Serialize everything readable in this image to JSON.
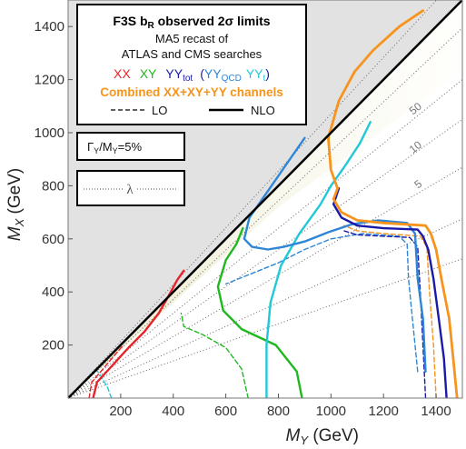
{
  "chart_data": {
    "type": "line",
    "title": "F3S b_R observed 2σ limits",
    "title_main": "F3S b",
    "title_sub": "R",
    "title_rest": " observed 2σ limits",
    "subtitle_line1": "MA5 recast of",
    "subtitle_line2": "ATLAS and CMS searches",
    "xlabel_main": "M",
    "xlabel_sub": "Y",
    "xlabel_unit": " (GeV)",
    "ylabel_main": "M",
    "ylabel_sub": "X",
    "ylabel_unit": " (GeV)",
    "xlim": [
      0,
      1500
    ],
    "ylim": [
      0,
      1500
    ],
    "xticks": [
      200,
      400,
      600,
      800,
      1000,
      1200,
      1400
    ],
    "yticks": [
      200,
      400,
      600,
      800,
      1000,
      1200,
      1400
    ],
    "excluded_region": "M_X < M_Y (grey)",
    "legend": {
      "XX": "XX",
      "XY": "XY",
      "YYtot_main": "YY",
      "YYtot_sub": "tot",
      "paren_open": "(",
      "YYQCD_main": "YY",
      "YYQCD_sub": "QCD",
      "YYt_main": "YY",
      "YYt_sub": "t",
      "paren_close": ")",
      "combined": "Combined XX+XY+YY channels",
      "lo": "LO",
      "nlo": "NLO",
      "width_main": "Γ",
      "width_sub1": "Y",
      "width_mid": "/M",
      "width_sub2": "Y",
      "width_end": "=5%",
      "lambda": "λ"
    },
    "lambda_contours": [
      {
        "label": "50",
        "slope": 1.07
      },
      {
        "label": "10",
        "slope": 0.93
      },
      {
        "label": "5",
        "slope": 0.8
      }
    ],
    "extra_dotted_slopes": [
      0.7,
      0.58,
      0.45,
      0.35
    ],
    "colors": {
      "XX": "#e8232a",
      "XY": "#1fb81f",
      "YYtot": "#1a1aa8",
      "YYQCD": "#2f86d6",
      "YYt": "#22c8d8",
      "combined": "#f7941d",
      "excluded": "#e2e2e2",
      "diagonal_band": "#d9d7a8"
    },
    "series": [
      {
        "name": "XX",
        "order": "NLO",
        "color_key": "XX",
        "points": [
          [
            95,
            0
          ],
          [
            110,
            60
          ],
          [
            175,
            130
          ],
          [
            230,
            190
          ],
          [
            290,
            250
          ],
          [
            345,
            320
          ],
          [
            385,
            390
          ],
          [
            415,
            445
          ],
          [
            440,
            480
          ]
        ]
      },
      {
        "name": "XY",
        "order": "NLO",
        "color_key": "XY",
        "points": [
          [
            890,
            0
          ],
          [
            870,
            100
          ],
          [
            790,
            200
          ],
          [
            660,
            260
          ],
          [
            590,
            330
          ],
          [
            570,
            420
          ],
          [
            600,
            520
          ],
          [
            640,
            580
          ],
          [
            665,
            640
          ]
        ]
      },
      {
        "name": "YY_t",
        "order": "NLO",
        "color_key": "YYt",
        "points": [
          [
            755,
            0
          ],
          [
            755,
            200
          ],
          [
            770,
            360
          ],
          [
            810,
            500
          ],
          [
            880,
            620
          ],
          [
            960,
            730
          ],
          [
            1000,
            800
          ],
          [
            1050,
            870
          ],
          [
            1110,
            960
          ],
          [
            1150,
            1040
          ]
        ]
      },
      {
        "name": "YY_QCD",
        "order": "NLO",
        "color_key": "YYQCD",
        "points": [
          [
            1360,
            100
          ],
          [
            1350,
            300
          ],
          [
            1330,
            450
          ],
          [
            1320,
            620
          ],
          [
            1290,
            660
          ],
          [
            1180,
            670
          ],
          [
            1080,
            655
          ],
          [
            990,
            625
          ],
          [
            900,
            590
          ],
          [
            820,
            570
          ],
          [
            760,
            560
          ],
          [
            700,
            570
          ],
          [
            670,
            600
          ],
          [
            690,
            680
          ],
          [
            760,
            780
          ],
          [
            830,
            880
          ],
          [
            900,
            980
          ]
        ]
      },
      {
        "name": "YY_tot",
        "order": "NLO",
        "color_key": "YYtot",
        "points": [
          [
            1440,
            0
          ],
          [
            1430,
            150
          ],
          [
            1410,
            300
          ],
          [
            1390,
            450
          ],
          [
            1370,
            560
          ],
          [
            1350,
            610
          ],
          [
            1330,
            635
          ],
          [
            1200,
            640
          ],
          [
            1100,
            650
          ],
          [
            1040,
            680
          ],
          [
            1010,
            730
          ],
          [
            1030,
            790
          ]
        ]
      },
      {
        "name": "Combined",
        "order": "NLO",
        "color_key": "combined",
        "points": [
          [
            1480,
            0
          ],
          [
            1465,
            150
          ],
          [
            1450,
            300
          ],
          [
            1420,
            450
          ],
          [
            1400,
            560
          ],
          [
            1380,
            620
          ],
          [
            1360,
            650
          ],
          [
            1200,
            660
          ],
          [
            1100,
            670
          ],
          [
            1040,
            700
          ],
          [
            1010,
            750
          ],
          [
            1025,
            790
          ],
          [
            1000,
            860
          ],
          [
            990,
            980
          ],
          [
            1030,
            1120
          ],
          [
            1090,
            1230
          ],
          [
            1160,
            1310
          ],
          [
            1260,
            1400
          ],
          [
            1350,
            1460
          ]
        ]
      },
      {
        "name": "XX",
        "order": "LO",
        "color_key": "XX",
        "points": [
          [
            80,
            0
          ],
          [
            90,
            60
          ],
          [
            150,
            130
          ],
          [
            210,
            200
          ]
        ]
      },
      {
        "name": "XY",
        "order": "LO",
        "color_key": "XY",
        "points": [
          [
            685,
            0
          ],
          [
            660,
            110
          ],
          [
            600,
            190
          ],
          [
            510,
            240
          ],
          [
            440,
            270
          ],
          [
            430,
            320
          ]
        ]
      },
      {
        "name": "YY_QCD",
        "order": "LO",
        "color_key": "YYQCD",
        "points": [
          [
            1330,
            100
          ],
          [
            1310,
            300
          ],
          [
            1295,
            450
          ],
          [
            1290,
            580
          ],
          [
            1260,
            610
          ],
          [
            1120,
            620
          ],
          [
            1000,
            600
          ],
          [
            900,
            560
          ],
          [
            800,
            510
          ],
          [
            700,
            470
          ],
          [
            600,
            430
          ]
        ]
      },
      {
        "name": "YY_t",
        "order": "LO",
        "color_key": "YYt",
        "points": [
          [
            165,
            0
          ],
          [
            150,
            40
          ],
          [
            120,
            90
          ],
          [
            100,
            120
          ]
        ]
      },
      {
        "name": "YY_tot",
        "order": "LO",
        "color_key": "YYtot",
        "points": [
          [
            1360,
            0
          ],
          [
            1350,
            200
          ],
          [
            1340,
            400
          ],
          [
            1330,
            570
          ],
          [
            1300,
            605
          ],
          [
            1200,
            610
          ],
          [
            1100,
            615
          ],
          [
            1050,
            630
          ]
        ]
      },
      {
        "name": "Combined",
        "order": "LO",
        "color_key": "combined",
        "points": [
          [
            1400,
            0
          ],
          [
            1390,
            200
          ],
          [
            1375,
            400
          ],
          [
            1365,
            570
          ],
          [
            1340,
            610
          ],
          [
            1200,
            620
          ],
          [
            1100,
            630
          ],
          [
            1050,
            650
          ]
        ]
      }
    ]
  }
}
